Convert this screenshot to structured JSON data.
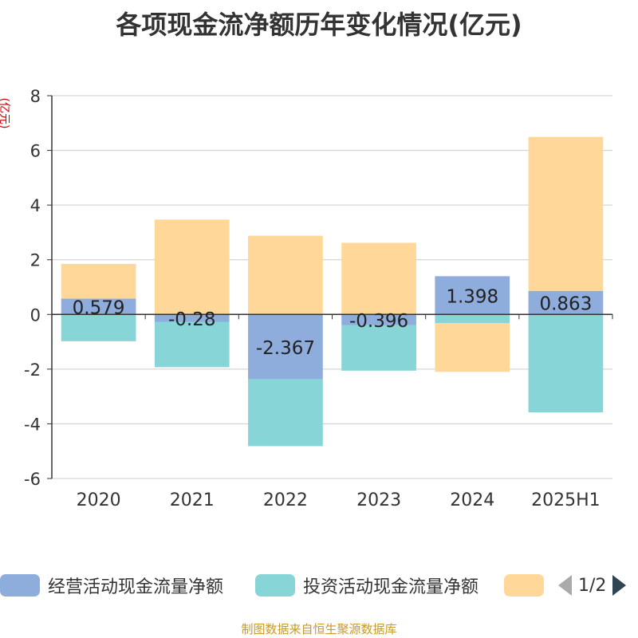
{
  "title": "各项现金流净额历年变化情况(亿元)",
  "footer": "制图数据来自恒生聚源数据库",
  "legend_page": "1/2",
  "chart_data": {
    "type": "bar",
    "stacked": true,
    "title": "各项现金流净额历年变化情况(亿元)",
    "ylabel": "(亿元)",
    "xlabel": "",
    "categories": [
      "2020",
      "2021",
      "2022",
      "2023",
      "2024",
      "2025H1"
    ],
    "ylim": [
      -6,
      8
    ],
    "yticks": [
      -6,
      -4,
      -2,
      0,
      2,
      4,
      6,
      8
    ],
    "grid": true,
    "legend_position": "bottom",
    "series": [
      {
        "name": "经营活动现金流量净额",
        "color": "#8eaddc",
        "values": [
          0.579,
          -0.28,
          -2.367,
          -0.396,
          1.398,
          0.863
        ],
        "labels": [
          "0.579",
          "-0.28",
          "-2.367",
          "-0.396",
          "1.398",
          "0.863"
        ]
      },
      {
        "name": "投资活动现金流量净额",
        "color": "#88d5d7",
        "values": [
          -0.98,
          -1.65,
          -2.45,
          -1.66,
          -0.32,
          -3.58
        ]
      },
      {
        "name": "",
        "color": "#ffd899",
        "values": [
          1.27,
          3.47,
          2.88,
          2.62,
          -1.78,
          5.63
        ]
      }
    ]
  }
}
